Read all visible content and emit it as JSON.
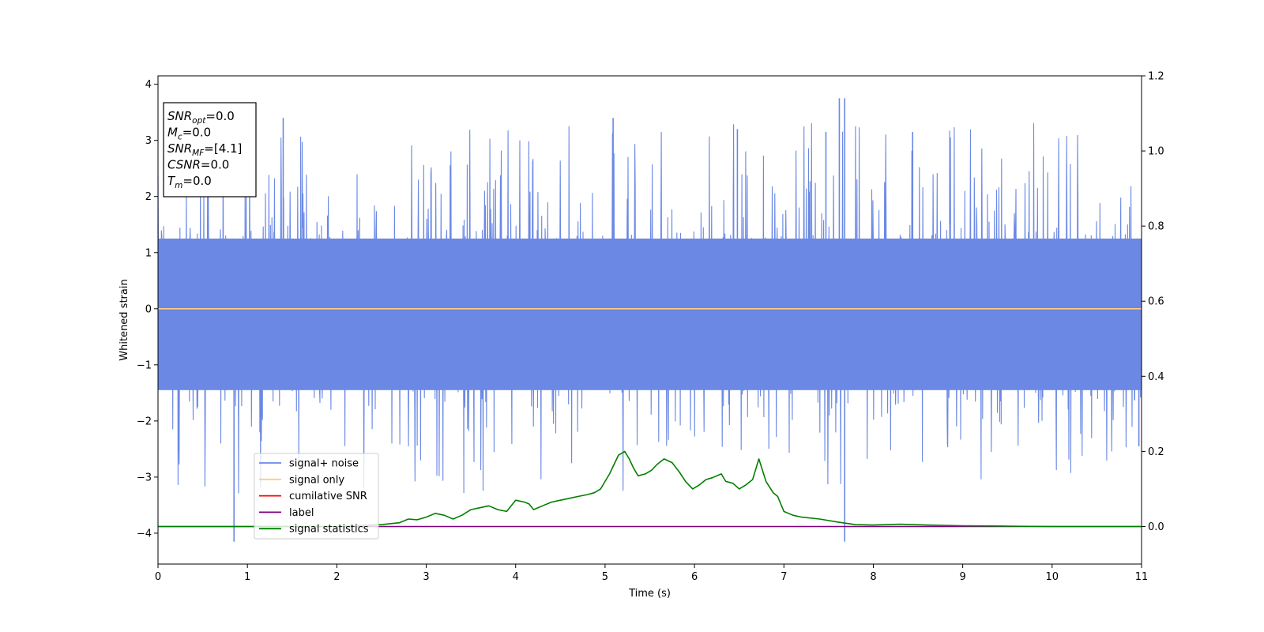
{
  "chart_data": {
    "type": "line",
    "xlabel": "Time (s)",
    "ylabel": "Whitened strain",
    "xlim": [
      0,
      11
    ],
    "ylim_left": [
      -4.55,
      4.15
    ],
    "ylim_right": [
      -0.1,
      1.2
    ],
    "x_ticks": [
      "0",
      "1",
      "2",
      "3",
      "4",
      "5",
      "6",
      "7",
      "8",
      "9",
      "10",
      "11"
    ],
    "y_left_ticks": [
      "−4",
      "−3",
      "−2",
      "−1",
      "0",
      "1",
      "2",
      "3",
      "4"
    ],
    "y_right_ticks": [
      "0.0",
      "0.2",
      "0.4",
      "0.6",
      "0.8",
      "1.0",
      "1.2"
    ],
    "grid": false,
    "legend_position": "lower-left",
    "annotation": {
      "lines": [
        {
          "main": "SNR",
          "sub": "opt",
          "rest": "=0.0"
        },
        {
          "main": "M",
          "sub": "c",
          "rest": "=0.0"
        },
        {
          "main": "SNR",
          "sub": "MF",
          "rest": "=[4.1]"
        },
        {
          "main": "CSNR",
          "sub": "",
          "rest": "=0.0"
        },
        {
          "main": "T",
          "sub": "m",
          "rest": "=0.0"
        }
      ]
    },
    "series": [
      {
        "name": "signal+ noise",
        "axis": "left",
        "color": "#6a88e4",
        "description_values": "dense noise, approx amplitude range -4.15 to 3.75",
        "spikes": [
          [
            0.85,
            -4.15
          ],
          [
            7.68,
            -4.15
          ],
          [
            7.62,
            3.75
          ],
          [
            7.68,
            3.75
          ],
          [
            1.4,
            3.4
          ],
          [
            5.09,
            3.4
          ],
          [
            6.48,
            3.2
          ],
          [
            7.47,
            3.15
          ],
          [
            8.44,
            3.15
          ],
          [
            10.97,
            -2.45
          ]
        ]
      },
      {
        "name": "signal only",
        "axis": "left",
        "color": "#ffcc80",
        "x": [
          0,
          11
        ],
        "y": [
          0,
          0
        ]
      },
      {
        "name": "cumilative SNR",
        "axis": "left",
        "color": "#ff0000",
        "x": [],
        "y": []
      },
      {
        "name": "label",
        "axis": "right",
        "color": "#800080",
        "x": [
          0,
          11
        ],
        "y": [
          0,
          0
        ]
      },
      {
        "name": "signal statistics",
        "axis": "right",
        "color": "#008000",
        "x": [
          0,
          1.0,
          2.0,
          2.5,
          2.7,
          2.8,
          2.9,
          3.0,
          3.1,
          3.2,
          3.3,
          3.4,
          3.5,
          3.6,
          3.7,
          3.8,
          3.9,
          4.0,
          4.1,
          4.15,
          4.2,
          4.3,
          4.4,
          4.5,
          4.6,
          4.7,
          4.8,
          4.88,
          4.95,
          5.0,
          5.05,
          5.1,
          5.15,
          5.22,
          5.27,
          5.32,
          5.37,
          5.45,
          5.52,
          5.58,
          5.66,
          5.75,
          5.83,
          5.9,
          5.98,
          6.05,
          6.13,
          6.2,
          6.3,
          6.35,
          6.43,
          6.5,
          6.57,
          6.65,
          6.72,
          6.8,
          6.88,
          6.93,
          7.0,
          7.1,
          7.2,
          7.4,
          7.6,
          7.8,
          8.0,
          8.3,
          8.6,
          9.0,
          9.5,
          10.0,
          11.0
        ],
        "y": [
          0.0,
          0.0,
          0.0,
          0.005,
          0.01,
          0.02,
          0.018,
          0.025,
          0.035,
          0.03,
          0.02,
          0.03,
          0.045,
          0.05,
          0.055,
          0.045,
          0.04,
          0.07,
          0.065,
          0.06,
          0.045,
          0.055,
          0.065,
          0.07,
          0.075,
          0.08,
          0.085,
          0.09,
          0.1,
          0.12,
          0.14,
          0.165,
          0.19,
          0.2,
          0.18,
          0.155,
          0.135,
          0.14,
          0.15,
          0.165,
          0.18,
          0.17,
          0.145,
          0.12,
          0.1,
          0.11,
          0.125,
          0.13,
          0.14,
          0.12,
          0.115,
          0.1,
          0.11,
          0.125,
          0.18,
          0.12,
          0.09,
          0.08,
          0.04,
          0.03,
          0.025,
          0.02,
          0.012,
          0.005,
          0.004,
          0.006,
          0.004,
          0.002,
          0.001,
          0.0,
          0.0
        ]
      }
    ]
  }
}
